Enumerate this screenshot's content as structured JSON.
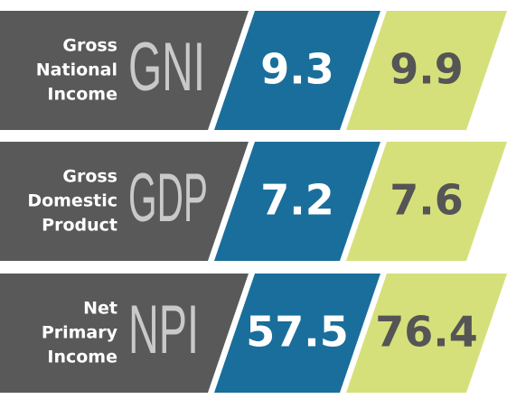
{
  "rows": [
    {
      "label": [
        "Gross",
        "National",
        "Income"
      ],
      "abbr": "GNI",
      "values": [
        "9.3",
        "9.9"
      ]
    },
    {
      "label": [
        "Gross",
        "Domestic",
        "Product"
      ],
      "abbr": "GDP",
      "values": [
        "7.2",
        "7.6"
      ]
    },
    {
      "label": [
        "Net",
        "Primary",
        "Income"
      ],
      "abbr": "NPI",
      "values": [
        "57.5",
        "76.4"
      ]
    }
  ]
}
